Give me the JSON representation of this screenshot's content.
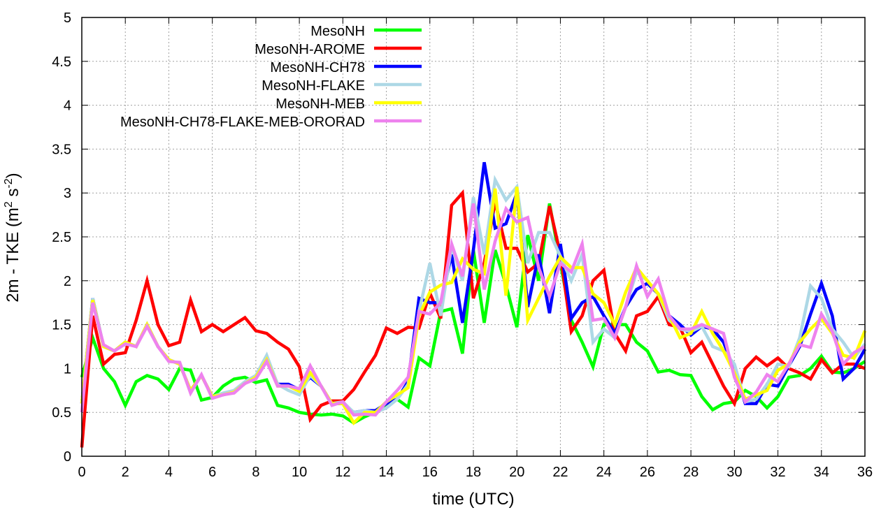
{
  "chart_data": {
    "type": "line",
    "title": "",
    "xlabel": "time (UTC)",
    "ylabel_parts": [
      "2m - TKE (m",
      "2",
      " s",
      "-2",
      ")"
    ],
    "xlim": [
      0,
      36
    ],
    "ylim": [
      0,
      5
    ],
    "xticks": [
      0,
      2,
      4,
      6,
      8,
      10,
      12,
      14,
      16,
      18,
      20,
      22,
      24,
      26,
      28,
      30,
      32,
      34,
      36
    ],
    "yticks": [
      0,
      0.5,
      1,
      1.5,
      2,
      2.5,
      3,
      3.5,
      4,
      4.5,
      5
    ],
    "ytick_labels": [
      "0",
      "0.5",
      "1",
      "1.5",
      "2",
      "2.5",
      "3",
      "3.5",
      "4",
      "4.5",
      "5"
    ],
    "grid": true,
    "legend_position": "top-left",
    "x_step": 0.5,
    "series": [
      {
        "name": "MesoNH",
        "color": "#00ff00",
        "values": [
          0.9,
          1.35,
          1.0,
          0.85,
          0.58,
          0.85,
          0.92,
          0.88,
          0.76,
          1.0,
          0.98,
          0.64,
          0.67,
          0.8,
          0.88,
          0.9,
          0.84,
          0.87,
          0.58,
          0.55,
          0.5,
          0.48,
          0.47,
          0.48,
          0.46,
          0.38,
          0.45,
          0.5,
          0.58,
          0.65,
          0.56,
          1.12,
          1.03,
          1.65,
          1.68,
          1.17,
          2.35,
          1.52,
          2.35,
          1.95,
          1.47,
          2.52,
          2.0,
          2.88,
          2.2,
          1.55,
          1.3,
          1.02,
          1.5,
          1.5,
          1.5,
          1.3,
          1.2,
          0.96,
          0.98,
          0.93,
          0.92,
          0.68,
          0.53,
          0.6,
          0.62,
          0.75,
          0.68,
          0.55,
          0.68,
          0.9,
          0.92,
          1.0,
          1.14,
          0.96,
          0.95,
          1.0,
          1.08
        ]
      },
      {
        "name": "MesoNH-AROME",
        "color": "#ff0000",
        "values": [
          0.1,
          1.6,
          1.05,
          1.16,
          1.18,
          1.55,
          2.0,
          1.5,
          1.26,
          1.3,
          1.78,
          1.42,
          1.5,
          1.42,
          1.5,
          1.58,
          1.43,
          1.4,
          1.3,
          1.22,
          1.02,
          0.42,
          0.58,
          0.63,
          0.63,
          0.76,
          0.96,
          1.15,
          1.46,
          1.4,
          1.47,
          1.46,
          1.86,
          1.57,
          2.86,
          3.0,
          1.8,
          2.2,
          2.9,
          2.37,
          2.37,
          2.1,
          2.2,
          2.85,
          2.3,
          1.42,
          1.6,
          2.0,
          2.12,
          1.4,
          1.2,
          1.6,
          1.65,
          1.82,
          1.5,
          1.47,
          1.18,
          1.3,
          1.05,
          0.8,
          0.6,
          1.0,
          1.13,
          1.03,
          1.12,
          1.0,
          0.95,
          0.88,
          1.1,
          0.95,
          1.05,
          1.05,
          1.0
        ]
      },
      {
        "name": "MesoNH-CH78",
        "color": "#0000ff",
        "values": [
          0.6,
          1.8,
          1.25,
          1.2,
          1.3,
          1.25,
          1.5,
          1.25,
          1.1,
          1.05,
          0.75,
          0.92,
          0.68,
          0.7,
          0.73,
          0.83,
          0.9,
          1.12,
          0.82,
          0.82,
          0.76,
          0.9,
          0.8,
          0.6,
          0.6,
          0.5,
          0.52,
          0.52,
          0.6,
          0.65,
          0.85,
          1.8,
          1.75,
          1.75,
          2.3,
          1.52,
          2.35,
          3.35,
          2.6,
          2.65,
          3.0,
          1.7,
          2.3,
          1.63,
          2.42,
          1.57,
          1.75,
          1.82,
          1.6,
          1.4,
          1.7,
          1.9,
          1.97,
          1.85,
          1.6,
          1.5,
          1.38,
          1.48,
          1.45,
          1.3,
          0.98,
          0.6,
          0.6,
          0.82,
          0.8,
          1.03,
          1.25,
          1.62,
          1.97,
          1.6,
          0.88,
          1.0,
          1.22
        ]
      },
      {
        "name": "MesoNH-FLAKE",
        "color": "#add8e6",
        "values": [
          0.6,
          1.8,
          1.25,
          1.2,
          1.3,
          1.25,
          1.5,
          1.25,
          1.1,
          1.05,
          0.75,
          0.92,
          0.68,
          0.72,
          0.75,
          0.85,
          0.92,
          1.15,
          0.82,
          0.75,
          0.7,
          0.92,
          0.8,
          0.6,
          0.62,
          0.5,
          0.52,
          0.5,
          0.55,
          0.65,
          0.82,
          1.65,
          2.2,
          1.6,
          2.4,
          2.0,
          2.95,
          2.3,
          3.15,
          2.92,
          3.07,
          2.2,
          2.55,
          2.55,
          2.28,
          2.0,
          2.3,
          1.3,
          1.45,
          1.35,
          1.7,
          2.1,
          2.0,
          1.85,
          1.55,
          1.45,
          1.42,
          1.48,
          1.25,
          1.2,
          1.05,
          0.62,
          0.65,
          0.82,
          1.05,
          1.02,
          1.35,
          1.94,
          1.8,
          1.45,
          1.3,
          1.12,
          1.28
        ]
      },
      {
        "name": "MesoNH-MEB",
        "color": "#ffff00",
        "values": [
          0.6,
          1.78,
          1.25,
          1.2,
          1.3,
          1.25,
          1.5,
          1.25,
          1.1,
          1.05,
          0.75,
          0.92,
          0.68,
          0.7,
          0.73,
          0.83,
          0.9,
          1.1,
          0.8,
          0.8,
          0.74,
          0.95,
          0.8,
          0.6,
          0.6,
          0.38,
          0.5,
          0.5,
          0.62,
          0.7,
          0.78,
          1.6,
          1.87,
          1.95,
          1.98,
          2.25,
          2.13,
          2.08,
          3.05,
          1.83,
          3.07,
          1.55,
          1.8,
          2.05,
          2.27,
          2.15,
          2.15,
          1.85,
          1.75,
          1.5,
          1.87,
          2.15,
          2.0,
          1.85,
          1.6,
          1.35,
          1.4,
          1.65,
          1.4,
          1.2,
          0.95,
          0.65,
          0.7,
          0.75,
          0.98,
          1.05,
          1.3,
          1.45,
          1.57,
          1.4,
          1.15,
          1.12,
          1.43
        ]
      },
      {
        "name": "MesoNH-CH78-FLAKE-MEB-ORORAD",
        "color": "#ee82ee",
        "values": [
          0.5,
          1.75,
          1.27,
          1.2,
          1.28,
          1.25,
          1.48,
          1.25,
          1.08,
          1.07,
          0.72,
          0.93,
          0.66,
          0.7,
          0.72,
          0.83,
          0.88,
          1.08,
          0.8,
          0.8,
          0.77,
          1.03,
          0.8,
          0.58,
          0.62,
          0.47,
          0.48,
          0.47,
          0.62,
          0.75,
          0.9,
          1.65,
          1.62,
          1.75,
          2.42,
          2.05,
          2.88,
          1.9,
          2.45,
          2.82,
          2.67,
          2.72,
          2.15,
          1.82,
          2.2,
          2.1,
          2.42,
          1.55,
          1.57,
          1.35,
          1.7,
          2.17,
          1.82,
          2.02,
          1.6,
          1.45,
          1.45,
          1.5,
          1.45,
          1.4,
          0.9,
          0.62,
          0.73,
          0.93,
          0.85,
          1.05,
          1.27,
          1.24,
          1.62,
          1.42,
          1.05,
          1.18,
          1.25
        ]
      }
    ]
  }
}
